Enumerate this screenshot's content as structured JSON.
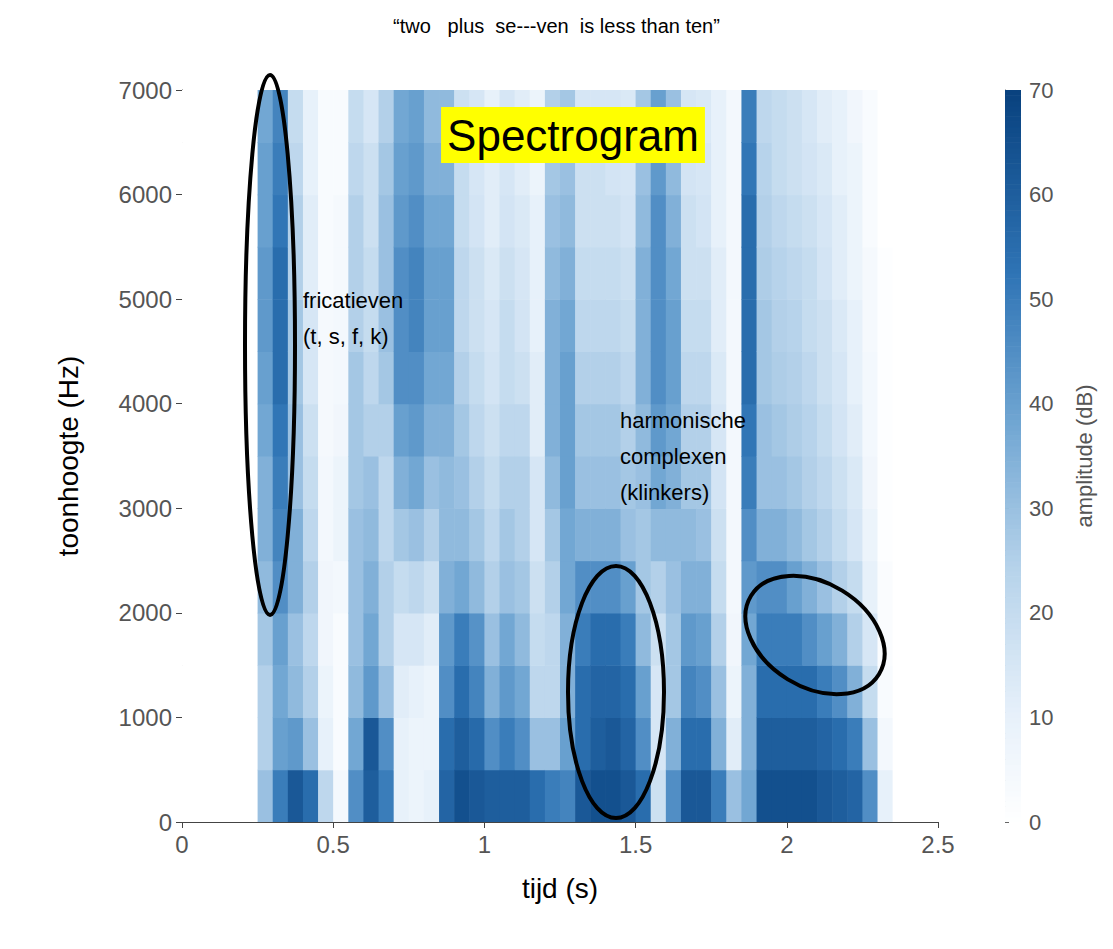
{
  "chart_data": {
    "type": "heatmap",
    "title": "Spectrogram",
    "subtitle": "“two   plus  se---ven  is less than ten”",
    "x_label": "tijd (s)",
    "y_label": "toonhoogte (Hz)",
    "xlim": [
      0,
      2.5
    ],
    "xticks": [
      0,
      0.5,
      1,
      1.5,
      2,
      2.5
    ],
    "ylim": [
      0,
      7000
    ],
    "yticks": [
      0,
      1000,
      2000,
      3000,
      4000,
      5000,
      6000,
      7000
    ],
    "time_bins": [
      0,
      0.05,
      0.1,
      0.15,
      0.2,
      0.25,
      0.3,
      0.35,
      0.4,
      0.45,
      0.5,
      0.55,
      0.6,
      0.65,
      0.7,
      0.75,
      0.8,
      0.85,
      0.9,
      0.95,
      1,
      1.05,
      1.1,
      1.15,
      1.2,
      1.25,
      1.3,
      1.35,
      1.4,
      1.45,
      1.5,
      1.55,
      1.6,
      1.65,
      1.7,
      1.75,
      1.8,
      1.85,
      1.9,
      1.95,
      2,
      2.05,
      2.1,
      2.15,
      2.2,
      2.25,
      2.3,
      2.35,
      2.4,
      2.45,
      2.5
    ],
    "freq_bins": [
      0,
      500,
      1000,
      1500,
      2000,
      2500,
      3000,
      3500,
      4000,
      4500,
      5000,
      5500,
      6000,
      6500,
      7000
    ],
    "amplitude": [
      [
        0,
        0,
        0,
        0,
        0,
        0,
        0,
        0,
        0,
        0,
        0,
        0,
        0,
        0
      ],
      [
        0,
        0,
        0,
        0,
        0,
        0,
        0,
        0,
        0,
        0,
        0,
        0,
        0,
        0
      ],
      [
        0,
        0,
        0,
        0,
        0,
        0,
        0,
        0,
        0,
        0,
        0,
        0,
        0,
        0
      ],
      [
        0,
        0,
        0,
        0,
        0,
        0,
        0,
        0,
        0,
        0,
        0,
        0,
        0,
        0
      ],
      [
        0,
        0,
        0,
        0,
        0,
        0,
        0,
        0,
        0,
        0,
        0,
        0,
        0,
        0
      ],
      [
        30,
        25,
        25,
        28,
        32,
        35,
        35,
        38,
        40,
        42,
        42,
        40,
        40,
        38
      ],
      [
        50,
        40,
        38,
        40,
        45,
        48,
        50,
        52,
        55,
        55,
        55,
        52,
        50,
        48
      ],
      [
        62,
        42,
        32,
        30,
        35,
        35,
        30,
        30,
        28,
        28,
        25,
        25,
        22,
        20
      ],
      [
        55,
        30,
        25,
        22,
        25,
        22,
        20,
        18,
        15,
        15,
        12,
        12,
        10,
        10
      ],
      [
        22,
        10,
        8,
        6,
        6,
        5,
        5,
        4,
        4,
        4,
        3,
        3,
        3,
        3
      ],
      [
        5,
        3,
        3,
        3,
        5,
        8,
        8,
        6,
        5,
        5,
        4,
        4,
        3,
        3
      ],
      [
        45,
        38,
        32,
        30,
        30,
        30,
        28,
        28,
        28,
        25,
        25,
        25,
        22,
        20
      ],
      [
        60,
        62,
        42,
        38,
        35,
        32,
        30,
        25,
        22,
        20,
        20,
        18,
        18,
        15
      ],
      [
        50,
        45,
        30,
        25,
        25,
        22,
        22,
        25,
        28,
        30,
        30,
        30,
        28,
        25
      ],
      [
        10,
        10,
        12,
        15,
        20,
        28,
        35,
        40,
        45,
        45,
        45,
        42,
        40,
        38
      ],
      [
        8,
        8,
        10,
        15,
        22,
        30,
        38,
        42,
        45,
        48,
        48,
        45,
        42,
        40
      ],
      [
        10,
        8,
        8,
        12,
        18,
        25,
        30,
        35,
        38,
        40,
        40,
        38,
        35,
        32
      ],
      [
        58,
        55,
        45,
        42,
        35,
        32,
        32,
        35,
        38,
        40,
        40,
        38,
        35,
        32
      ],
      [
        65,
        60,
        55,
        50,
        38,
        32,
        30,
        28,
        25,
        22,
        22,
        20,
        20,
        18
      ],
      [
        62,
        56,
        48,
        44,
        32,
        28,
        25,
        22,
        20,
        18,
        18,
        16,
        15,
        15
      ],
      [
        60,
        45,
        35,
        30,
        25,
        22,
        20,
        18,
        16,
        15,
        14,
        12,
        12,
        10
      ],
      [
        60,
        50,
        42,
        38,
        30,
        28,
        25,
        22,
        20,
        20,
        18,
        16,
        15,
        15
      ],
      [
        60,
        45,
        38,
        32,
        28,
        25,
        25,
        22,
        18,
        16,
        15,
        14,
        12,
        12
      ],
      [
        55,
        30,
        22,
        20,
        18,
        15,
        15,
        12,
        12,
        10,
        10,
        10,
        8,
        8
      ],
      [
        50,
        30,
        22,
        22,
        25,
        28,
        32,
        35,
        35,
        35,
        32,
        30,
        28,
        25
      ],
      [
        48,
        40,
        35,
        35,
        38,
        38,
        40,
        40,
        40,
        38,
        35,
        32,
        30,
        28
      ],
      [
        62,
        55,
        55,
        50,
        45,
        35,
        30,
        28,
        25,
        22,
        20,
        18,
        18,
        15
      ],
      [
        65,
        60,
        58,
        55,
        45,
        35,
        30,
        28,
        25,
        22,
        20,
        18,
        18,
        15
      ],
      [
        65,
        62,
        58,
        55,
        45,
        35,
        30,
        28,
        25,
        22,
        20,
        18,
        16,
        15
      ],
      [
        62,
        58,
        55,
        50,
        40,
        30,
        28,
        25,
        22,
        20,
        18,
        16,
        15,
        14
      ],
      [
        55,
        45,
        40,
        32,
        28,
        28,
        30,
        32,
        35,
        35,
        35,
        32,
        30,
        28
      ],
      [
        18,
        15,
        15,
        18,
        25,
        32,
        38,
        42,
        45,
        45,
        45,
        45,
        42,
        40
      ],
      [
        45,
        35,
        28,
        28,
        30,
        32,
        35,
        38,
        40,
        40,
        38,
        35,
        32,
        30
      ],
      [
        62,
        55,
        48,
        42,
        35,
        32,
        28,
        25,
        22,
        20,
        18,
        18,
        16,
        15
      ],
      [
        62,
        55,
        45,
        40,
        35,
        30,
        28,
        25,
        22,
        20,
        18,
        16,
        15,
        14
      ],
      [
        50,
        35,
        30,
        25,
        20,
        18,
        16,
        15,
        14,
        12,
        12,
        10,
        10,
        10
      ],
      [
        30,
        12,
        8,
        6,
        5,
        5,
        5,
        5,
        5,
        5,
        5,
        5,
        5,
        5
      ],
      [
        38,
        35,
        35,
        38,
        42,
        45,
        50,
        52,
        55,
        55,
        55,
        55,
        52,
        50
      ],
      [
        65,
        60,
        55,
        50,
        45,
        35,
        30,
        30,
        28,
        28,
        26,
        25,
        24,
        22
      ],
      [
        65,
        60,
        55,
        50,
        45,
        35,
        30,
        28,
        26,
        25,
        24,
        22,
        20,
        20
      ],
      [
        65,
        60,
        55,
        50,
        40,
        32,
        28,
        26,
        25,
        24,
        22,
        20,
        18,
        18
      ],
      [
        65,
        60,
        55,
        45,
        35,
        28,
        25,
        24,
        22,
        20,
        20,
        18,
        16,
        15
      ],
      [
        62,
        58,
        50,
        40,
        30,
        25,
        22,
        20,
        18,
        18,
        16,
        15,
        14,
        12
      ],
      [
        60,
        55,
        45,
        35,
        25,
        20,
        18,
        16,
        15,
        14,
        12,
        12,
        10,
        10
      ],
      [
        58,
        50,
        35,
        25,
        20,
        15,
        14,
        12,
        10,
        10,
        8,
        8,
        8,
        6
      ],
      [
        45,
        30,
        20,
        15,
        10,
        8,
        6,
        5,
        5,
        4,
        4,
        3,
        3,
        3
      ],
      [
        10,
        5,
        3,
        2,
        2,
        1,
        1,
        1,
        1,
        1,
        1,
        0,
        0,
        0
      ],
      [
        0,
        0,
        0,
        0,
        0,
        0,
        0,
        0,
        0,
        0,
        0,
        0,
        0,
        0
      ],
      [
        0,
        0,
        0,
        0,
        0,
        0,
        0,
        0,
        0,
        0,
        0,
        0,
        0,
        0
      ],
      [
        0,
        0,
        0,
        0,
        0,
        0,
        0,
        0,
        0,
        0,
        0,
        0,
        0,
        0
      ]
    ],
    "colorbar": {
      "label": "amplitude (dB)",
      "range": [
        0,
        70
      ],
      "ticks": [
        0,
        10,
        20,
        30,
        40,
        50,
        60,
        70
      ]
    },
    "annotations": [
      {
        "lines": [
          "fricatieven",
          "(t, s, f, k)"
        ]
      },
      {
        "lines": [
          "harmonische",
          "complexen",
          "(klinkers)"
        ]
      }
    ]
  }
}
